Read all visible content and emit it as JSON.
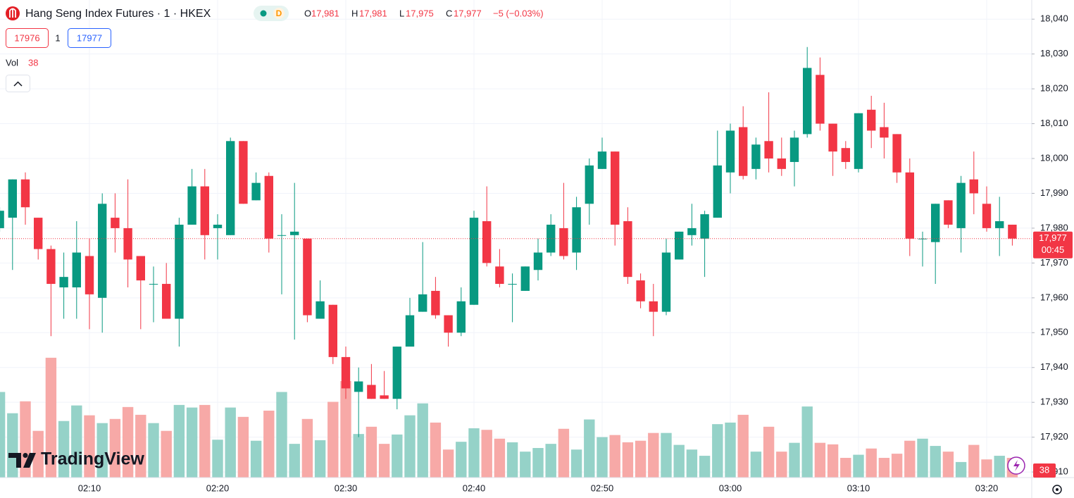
{
  "chart_data": {
    "type": "candlestick",
    "title": "Hang Seng Index Futures · 1 · HKEX",
    "badge": "D",
    "legend": [
      {
        "key": "O",
        "value": "17,981"
      },
      {
        "key": "H",
        "value": "17,981"
      },
      {
        "key": "L",
        "value": "17,975"
      },
      {
        "key": "C",
        "value": "17,977"
      }
    ],
    "change": "−5 (−0.03%)",
    "bid": "17976",
    "spread": "1",
    "ask": "17977",
    "volume_legend": {
      "name": "Vol",
      "value": "38"
    },
    "last_price_label": "17,977",
    "countdown": "00:45",
    "brand": "TradingView",
    "up_color": "#089981",
    "down_color": "#f23645",
    "up_volume_color": "#95d2c8",
    "down_volume_color": "#f7a9a7",
    "grid": true,
    "categories": [
      null,
      null,
      null,
      null,
      null,
      null,
      null,
      "02:10",
      null,
      null,
      null,
      null,
      null,
      null,
      null,
      null,
      null,
      "02:20",
      null,
      null,
      null,
      null,
      null,
      null,
      null,
      null,
      null,
      "02:30",
      null,
      null,
      null,
      null,
      null,
      null,
      null,
      null,
      null,
      "02:40",
      null,
      null,
      null,
      null,
      null,
      null,
      null,
      null,
      null,
      "02:50",
      null,
      null,
      null,
      null,
      null,
      null,
      null,
      null,
      null,
      "03:00",
      null,
      null,
      null,
      null,
      null,
      null,
      null,
      null,
      null,
      "03:10",
      null,
      null,
      null,
      null,
      null,
      null,
      null,
      null,
      null,
      "03:20",
      null,
      null
    ],
    "open": [
      17980,
      17983,
      17994,
      17983,
      17974,
      17963,
      17963,
      17972,
      17960,
      17983,
      17980,
      17972,
      17964,
      17964,
      17954,
      17981,
      17992,
      17980,
      17978,
      18005,
      17988,
      17995,
      17978,
      17978,
      17977,
      17954,
      17958,
      17943,
      17933,
      17935,
      17932,
      17931,
      17946,
      17956,
      17962,
      17955,
      17950,
      17958,
      17982,
      17969,
      17964,
      17962,
      17968,
      17973,
      17980,
      17973,
      17987,
      17997,
      18002,
      17982,
      17965,
      17959,
      17956,
      17971,
      17978,
      17977,
      17983,
      17996,
      18009,
      17997,
      18005,
      18000,
      17999,
      18007,
      18024,
      18010,
      18003,
      17997,
      18014,
      18009,
      18007,
      17996,
      17977,
      17976,
      17988,
      17980,
      17994,
      17987,
      17980,
      17981
    ],
    "high": [
      17986,
      17994,
      17996,
      17983,
      17975,
      17973,
      17982,
      17977,
      17990,
      17990,
      17994,
      17972,
      17969,
      17970,
      17983,
      17997,
      17997,
      17984,
      18006,
      18005,
      17996,
      17996,
      17984,
      17993,
      17977,
      17965,
      17958,
      17946,
      17940,
      17941,
      17939,
      17946,
      17960,
      17976,
      17966,
      17955,
      17963,
      17985,
      17992,
      17974,
      17967,
      17969,
      17977,
      17984,
      17993,
      17989,
      18000,
      18006,
      18002,
      17986,
      17967,
      17964,
      17977,
      17979,
      17987,
      17985,
      18008,
      18010,
      18015,
      18006,
      18019,
      18006,
      18008,
      18032,
      18029,
      18010,
      18005,
      18013,
      18018,
      18016,
      18007,
      18000,
      17979,
      17987,
      17988,
      17995,
      18002,
      17992,
      17989,
      17981
    ],
    "low": [
      17979,
      17968,
      17981,
      17971,
      17949,
      17954,
      17954,
      17951,
      17950,
      17973,
      17963,
      17951,
      17953,
      17954,
      17946,
      17981,
      17971,
      17971,
      17978,
      17987,
      17988,
      17973,
      17961,
      17948,
      17953,
      17954,
      17941,
      17931,
      17920,
      17931,
      17931,
      17928,
      17946,
      17956,
      17954,
      17946,
      17949,
      17958,
      17969,
      17963,
      17953,
      17962,
      17965,
      17972,
      17971,
      17968,
      17981,
      17997,
      17975,
      17964,
      17957,
      17949,
      17955,
      17971,
      17975,
      17966,
      17983,
      17990,
      17994,
      17994,
      17996,
      17995,
      17992,
      18006,
      18008,
      17995,
      17997,
      17996,
      18003,
      18000,
      17993,
      17972,
      17969,
      17964,
      17980,
      17973,
      17984,
      17979,
      17972,
      17975
    ],
    "close": [
      17985,
      17994,
      17986,
      17974,
      17964,
      17966,
      17973,
      17961,
      17987,
      17980,
      17971,
      17965,
      17964,
      17954,
      17981,
      17992,
      17978,
      17981,
      18005,
      17987,
      17993,
      17977,
      17978,
      17979,
      17955,
      17959,
      17943,
      17934,
      17936,
      17931,
      17931,
      17946,
      17955,
      17961,
      17955,
      17950,
      17959,
      17983,
      17970,
      17964,
      17964,
      17969,
      17973,
      17981,
      17972,
      17986,
      17998,
      18002,
      17981,
      17966,
      17959,
      17956,
      17973,
      17979,
      17980,
      17984,
      17998,
      18008,
      17995,
      18004,
      18000,
      17997,
      18006,
      18026,
      18010,
      18002,
      17999,
      18013,
      18008,
      18006,
      17996,
      17977,
      17977,
      17987,
      17981,
      17993,
      17990,
      17980,
      17982,
      17977
    ],
    "volume": [
      165,
      124,
      147,
      90,
      231,
      109,
      139,
      120,
      105,
      113,
      136,
      121,
      105,
      90,
      140,
      135,
      140,
      73,
      135,
      117,
      71,
      129,
      165,
      65,
      113,
      72,
      146,
      186,
      84,
      98,
      65,
      83,
      120,
      143,
      106,
      54,
      69,
      95,
      92,
      75,
      68,
      50,
      57,
      65,
      94,
      54,
      112,
      78,
      82,
      68,
      71,
      86,
      86,
      63,
      54,
      42,
      103,
      106,
      121,
      50,
      98,
      50,
      67,
      137,
      67,
      64,
      38,
      44,
      56,
      38,
      46,
      71,
      75,
      61,
      50,
      30,
      63,
      35,
      42,
      38
    ],
    "volume_ylim": [
      0,
      315
    ],
    "ylim": [
      17908.4,
      18045.5
    ],
    "yticks": [
      {
        "value": 17910,
        "label": "17,910"
      },
      {
        "value": 17920,
        "label": "17,920"
      },
      {
        "value": 17930,
        "label": "17,930"
      },
      {
        "value": 17940,
        "label": "17,940"
      },
      {
        "value": 17950,
        "label": "17,950"
      },
      {
        "value": 17960,
        "label": "17,960"
      },
      {
        "value": 17970,
        "label": "17,970"
      },
      {
        "value": 17980,
        "label": "17,980"
      },
      {
        "value": 17990,
        "label": "17,990"
      },
      {
        "value": 18000,
        "label": "18,000"
      },
      {
        "value": 18010,
        "label": "18,010"
      },
      {
        "value": 18020,
        "label": "18,020"
      },
      {
        "value": 18030,
        "label": "18,030"
      },
      {
        "value": 18040,
        "label": "18,040"
      }
    ]
  }
}
